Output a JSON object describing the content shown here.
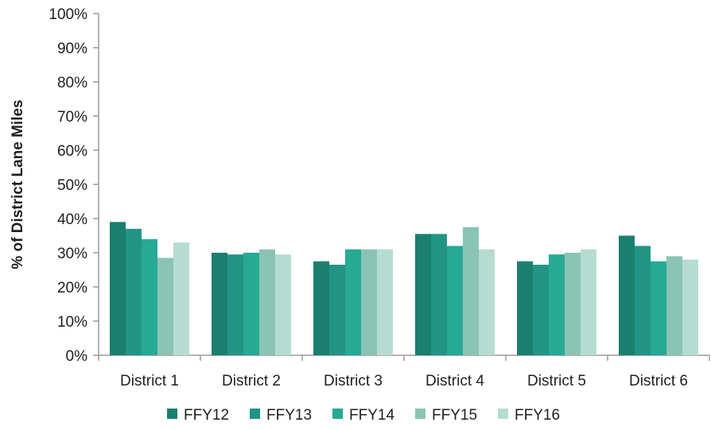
{
  "chart_data": {
    "type": "bar",
    "title": "",
    "xlabel": "",
    "ylabel": "% of District Lane Miles",
    "ylim": [
      0,
      100
    ],
    "y_ticks": [
      "0%",
      "10%",
      "20%",
      "30%",
      "40%",
      "50%",
      "60%",
      "70%",
      "80%",
      "90%",
      "100%"
    ],
    "y_tick_values": [
      0,
      10,
      20,
      30,
      40,
      50,
      60,
      70,
      80,
      90,
      100
    ],
    "categories": [
      "District 1",
      "District 2",
      "District 3",
      "District 4",
      "District 5",
      "District 6"
    ],
    "series": [
      {
        "name": "FFY12",
        "color": "#1a7f6e",
        "values": [
          39,
          30,
          27.5,
          35.5,
          27.5,
          35
        ]
      },
      {
        "name": "FFY13",
        "color": "#229485",
        "values": [
          37,
          29.5,
          26.5,
          35.5,
          26.5,
          32
        ]
      },
      {
        "name": "FFY14",
        "color": "#26a995",
        "values": [
          34,
          30,
          31,
          32,
          29.5,
          27.5
        ]
      },
      {
        "name": "FFY15",
        "color": "#8ac4b5",
        "values": [
          28.5,
          31,
          31,
          37.5,
          30,
          29
        ]
      },
      {
        "name": "FFY16",
        "color": "#b6dcd2",
        "values": [
          33,
          29.5,
          31,
          31,
          31,
          28
        ]
      }
    ],
    "grid": false,
    "legend_position": "bottom"
  }
}
